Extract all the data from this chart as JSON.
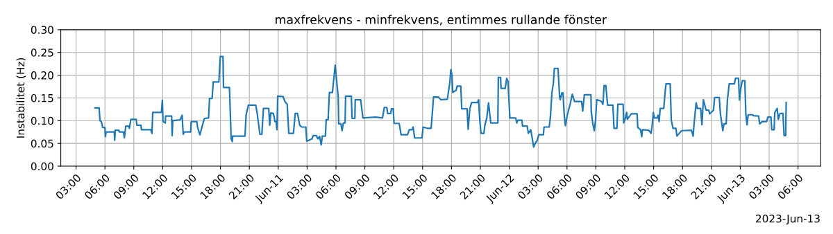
{
  "chart_data": {
    "type": "line",
    "title": "maxfrekvens - minfrekvens, entimmes rullande fönster",
    "ylabel": "Instabilitet (Hz)",
    "annotations": [
      "2023-Jun-13"
    ],
    "xlim": [
      "2023-06-10T01:25",
      "2023-06-13T08:20"
    ],
    "xticks": [
      {
        "value": "2023-06-10T03:00",
        "label": "03:00"
      },
      {
        "value": "2023-06-10T06:00",
        "label": "06:00"
      },
      {
        "value": "2023-06-10T09:00",
        "label": "09:00"
      },
      {
        "value": "2023-06-10T12:00",
        "label": "12:00"
      },
      {
        "value": "2023-06-10T15:00",
        "label": "15:00"
      },
      {
        "value": "2023-06-10T18:00",
        "label": "18:00"
      },
      {
        "value": "2023-06-10T21:00",
        "label": "21:00"
      },
      {
        "value": "2023-06-11T00:00",
        "label": "Jun-11"
      },
      {
        "value": "2023-06-11T03:00",
        "label": "03:00"
      },
      {
        "value": "2023-06-11T06:00",
        "label": "06:00"
      },
      {
        "value": "2023-06-11T09:00",
        "label": "09:00"
      },
      {
        "value": "2023-06-11T12:00",
        "label": "12:00"
      },
      {
        "value": "2023-06-11T15:00",
        "label": "15:00"
      },
      {
        "value": "2023-06-11T18:00",
        "label": "18:00"
      },
      {
        "value": "2023-06-11T21:00",
        "label": "21:00"
      },
      {
        "value": "2023-06-12T00:00",
        "label": "Jun-12"
      },
      {
        "value": "2023-06-12T03:00",
        "label": "03:00"
      },
      {
        "value": "2023-06-12T06:00",
        "label": "06:00"
      },
      {
        "value": "2023-06-12T09:00",
        "label": "09:00"
      },
      {
        "value": "2023-06-12T12:00",
        "label": "12:00"
      },
      {
        "value": "2023-06-12T15:00",
        "label": "15:00"
      },
      {
        "value": "2023-06-12T18:00",
        "label": "18:00"
      },
      {
        "value": "2023-06-12T21:00",
        "label": "21:00"
      },
      {
        "value": "2023-06-13T00:00",
        "label": "Jun-13"
      },
      {
        "value": "2023-06-13T03:00",
        "label": "03:00"
      },
      {
        "value": "2023-06-13T06:00",
        "label": "06:00"
      }
    ],
    "ylim": [
      0,
      0.3
    ],
    "yticks": [
      {
        "value": 0,
        "label": "0.00"
      },
      {
        "value": 0.05,
        "label": "0.05"
      },
      {
        "value": 0.1,
        "label": "0.10"
      },
      {
        "value": 0.15,
        "label": "0.15"
      },
      {
        "value": 0.2,
        "label": "0.20"
      },
      {
        "value": 0.25,
        "label": "0.25"
      },
      {
        "value": 0.3,
        "label": "0.30"
      }
    ],
    "grid": true,
    "series": [
      {
        "color": "#1f77b4",
        "x": [
          "2023-06-10T04:58",
          "2023-06-10T05:24",
          "2023-06-10T05:29",
          "2023-06-10T05:38",
          "2023-06-10T05:46",
          "2023-06-10T06:00",
          "2023-06-10T06:03",
          "2023-06-10T06:08",
          "2023-06-10T06:58",
          "2023-06-10T07:01",
          "2023-06-10T07:04",
          "2023-06-10T07:27",
          "2023-06-10T07:30",
          "2023-06-10T07:56",
          "2023-06-10T08:01",
          "2023-06-10T08:10",
          "2023-06-10T08:28",
          "2023-06-10T08:32",
          "2023-06-10T08:42",
          "2023-06-10T09:15",
          "2023-06-10T09:19",
          "2023-06-10T09:44",
          "2023-06-10T09:48",
          "2023-06-10T10:46",
          "2023-06-10T10:53",
          "2023-06-10T10:58",
          "2023-06-10T11:52",
          "2023-06-10T11:58",
          "2023-06-10T12:02",
          "2023-06-10T12:16",
          "2023-06-10T12:18",
          "2023-06-10T12:56",
          "2023-06-10T12:59",
          "2023-06-10T13:03",
          "2023-06-10T13:49",
          "2023-06-10T14:01",
          "2023-06-10T14:08",
          "2023-06-10T14:14",
          "2023-06-10T14:54",
          "2023-06-10T14:58",
          "2023-06-10T15:33",
          "2023-06-10T15:37",
          "2023-06-10T15:52",
          "2023-06-10T16:06",
          "2023-06-10T16:20",
          "2023-06-10T16:46",
          "2023-06-10T16:52",
          "2023-06-10T17:08",
          "2023-06-10T17:15",
          "2023-06-10T17:50",
          "2023-06-10T17:59",
          "2023-06-10T18:16",
          "2023-06-10T18:19",
          "2023-06-10T18:56",
          "2023-06-10T19:07",
          "2023-06-10T19:14",
          "2023-06-10T19:16",
          "2023-06-10T20:33",
          "2023-06-10T20:40",
          "2023-06-10T20:54",
          "2023-06-10T21:40",
          "2023-06-10T21:49",
          "2023-06-10T22:06",
          "2023-06-10T22:18",
          "2023-06-10T22:28",
          "2023-06-10T23:01",
          "2023-06-10T23:07",
          "2023-06-10T23:14",
          "2023-06-10T23:30",
          "2023-06-10T23:40",
          "2023-06-10T23:47",
          "2023-06-10T23:52",
          "2023-06-10T23:57",
          "2023-06-11T00:30",
          "2023-06-11T00:42",
          "2023-06-11T00:56",
          "2023-06-11T01:06",
          "2023-06-11T01:35",
          "2023-06-11T01:46",
          "2023-06-11T02:00",
          "2023-06-11T02:14",
          "2023-06-11T02:26",
          "2023-06-11T02:52",
          "2023-06-11T02:58",
          "2023-06-11T03:12",
          "2023-06-11T03:31",
          "2023-06-11T03:38",
          "2023-06-11T03:59",
          "2023-06-11T04:07",
          "2023-06-11T04:18",
          "2023-06-11T04:28",
          "2023-06-11T04:35",
          "2023-06-11T04:54",
          "2023-06-11T04:59",
          "2023-06-11T05:11",
          "2023-06-11T05:19",
          "2023-06-11T05:38",
          "2023-06-11T05:55",
          "2023-06-11T06:14",
          "2023-06-11T06:17",
          "2023-06-11T06:31",
          "2023-06-11T06:38",
          "2023-06-11T06:46",
          "2023-06-11T06:57",
          "2023-06-11T07:00",
          "2023-06-11T07:36",
          "2023-06-11T07:40",
          "2023-06-11T07:58",
          "2023-06-11T08:00",
          "2023-06-11T08:34",
          "2023-06-11T08:48",
          "2023-06-11T10:07",
          "2023-06-11T10:50",
          "2023-06-11T11:01",
          "2023-06-11T11:17",
          "2023-06-11T11:22",
          "2023-06-11T11:41",
          "2023-06-11T11:46",
          "2023-06-11T11:57",
          "2023-06-11T12:02",
          "2023-06-11T12:34",
          "2023-06-11T12:46",
          "2023-06-11T13:26",
          "2023-06-11T13:37",
          "2023-06-11T13:55",
          "2023-06-11T14:01",
          "2023-06-11T14:10",
          "2023-06-11T14:56",
          "2023-06-11T15:03",
          "2023-06-11T15:32",
          "2023-06-11T15:53",
          "2023-06-11T16:01",
          "2023-06-11T16:08",
          "2023-06-11T16:37",
          "2023-06-11T16:54",
          "2023-06-11T17:34",
          "2023-06-11T17:49",
          "2023-06-11T17:56",
          "2023-06-11T18:03",
          "2023-06-11T18:08",
          "2023-06-11T18:29",
          "2023-06-11T18:35",
          "2023-06-11T18:58",
          "2023-06-11T19:04",
          "2023-06-11T19:37",
          "2023-06-11T19:44",
          "2023-06-11T19:54",
          "2023-06-11T20:06",
          "2023-06-11T20:42",
          "2023-06-11T20:49",
          "2023-06-11T20:56",
          "2023-06-11T21:04",
          "2023-06-11T21:22",
          "2023-06-11T21:28",
          "2023-06-11T21:40",
          "2023-06-11T21:51",
          "2023-06-11T22:05",
          "2023-06-11T22:49",
          "2023-06-11T22:52",
          "2023-06-11T23:06",
          "2023-06-11T23:09",
          "2023-06-11T23:35",
          "2023-06-11T23:44",
          "2023-06-11T23:52",
          "2023-06-12T00:04",
          "2023-06-12T00:40",
          "2023-06-12T00:47",
          "2023-06-12T00:54",
          "2023-06-12T01:19",
          "2023-06-12T01:23",
          "2023-06-12T01:52",
          "2023-06-12T01:59",
          "2023-06-12T02:14",
          "2023-06-12T02:21",
          "2023-06-12T02:32",
          "2023-06-12T02:43",
          "2023-06-12T02:54",
          "2023-06-12T03:04",
          "2023-06-12T03:33",
          "2023-06-12T03:37",
          "2023-06-12T04:09",
          "2023-06-12T04:16",
          "2023-06-12T04:26",
          "2023-06-12T04:35",
          "2023-06-12T04:41",
          "2023-06-12T05:04",
          "2023-06-12T05:14",
          "2023-06-12T05:18",
          "2023-06-12T05:28",
          "2023-06-12T05:35",
          "2023-06-12T05:43",
          "2023-06-12T05:50",
          "2023-06-12T06:01",
          "2023-06-12T06:19",
          "2023-06-12T06:33",
          "2023-06-12T06:47",
          "2023-06-12T07:31",
          "2023-06-12T07:38",
          "2023-06-12T07:48",
          "2023-06-12T08:29",
          "2023-06-12T08:31",
          "2023-06-12T08:40",
          "2023-06-12T08:50",
          "2023-06-12T08:58",
          "2023-06-12T09:05",
          "2023-06-12T09:26",
          "2023-06-12T09:37",
          "2023-06-12T09:44",
          "2023-06-12T09:51",
          "2023-06-12T10:02",
          "2023-06-12T10:13",
          "2023-06-12T10:46",
          "2023-06-12T10:53",
          "2023-06-12T11:11",
          "2023-06-12T11:17",
          "2023-06-12T11:50",
          "2023-06-12T11:53",
          "2023-06-12T12:02",
          "2023-06-12T12:12",
          "2023-06-12T12:16",
          "2023-06-12T12:41",
          "2023-06-12T13:17",
          "2023-06-12T13:21",
          "2023-06-12T13:38",
          "2023-06-12T13:46",
          "2023-06-12T13:50",
          "2023-06-12T14:29",
          "2023-06-12T14:44",
          "2023-06-12T14:51",
          "2023-06-12T14:58",
          "2023-06-12T15:05",
          "2023-06-12T15:20",
          "2023-06-12T15:27",
          "2023-06-12T15:34",
          "2023-06-12T15:41",
          "2023-06-12T16:03",
          "2023-06-12T16:10",
          "2023-06-12T16:17",
          "2023-06-12T16:43",
          "2023-06-12T16:50",
          "2023-06-12T17:01",
          "2023-06-12T17:19",
          "2023-06-12T17:25",
          "2023-06-12T17:37",
          "2023-06-12T17:54",
          "2023-06-12T18:56",
          "2023-06-12T19:06",
          "2023-06-12T19:14",
          "2023-06-12T19:25",
          "2023-06-12T19:32",
          "2023-06-12T19:53",
          "2023-06-12T20:01",
          "2023-06-12T20:10",
          "2023-06-12T20:27",
          "2023-06-12T20:44",
          "2023-06-12T20:49",
          "2023-06-12T21:13",
          "2023-06-12T21:20",
          "2023-06-12T21:49",
          "2023-06-12T21:56",
          "2023-06-12T22:11",
          "2023-06-12T22:18",
          "2023-06-12T22:32",
          "2023-06-12T22:40",
          "2023-06-12T22:51",
          "2023-06-12T23:23",
          "2023-06-12T23:30",
          "2023-06-12T23:49",
          "2023-06-12T23:55",
          "2023-06-13T00:03",
          "2023-06-13T00:13",
          "2023-06-13T00:28",
          "2023-06-13T00:35",
          "2023-06-13T00:42",
          "2023-06-13T00:49",
          "2023-06-13T01:18",
          "2023-06-13T01:21",
          "2023-06-13T01:54",
          "2023-06-13T02:01",
          "2023-06-13T02:16",
          "2023-06-13T02:44",
          "2023-06-13T02:52",
          "2023-06-13T03:11",
          "2023-06-13T03:16",
          "2023-06-13T03:31",
          "2023-06-13T03:35",
          "2023-06-13T03:50",
          "2023-06-13T03:57",
          "2023-06-13T04:08",
          "2023-06-13T04:26",
          "2023-06-13T04:33",
          "2023-06-13T04:43",
          "2023-06-13T04:46"
        ],
        "values": [
          0.128,
          0.128,
          0.1,
          0.098,
          0.085,
          0.085,
          0.065,
          0.075,
          0.075,
          0.057,
          0.079,
          0.079,
          0.075,
          0.075,
          0.062,
          0.088,
          0.088,
          0.083,
          0.103,
          0.103,
          0.09,
          0.09,
          0.08,
          0.08,
          0.072,
          0.118,
          0.118,
          0.145,
          0.098,
          0.095,
          0.11,
          0.11,
          0.067,
          0.1,
          0.102,
          0.112,
          0.07,
          0.075,
          0.075,
          0.098,
          0.098,
          0.086,
          0.069,
          0.088,
          0.105,
          0.106,
          0.149,
          0.149,
          0.185,
          0.185,
          0.241,
          0.241,
          0.173,
          0.173,
          0.06,
          0.054,
          0.066,
          0.066,
          0.113,
          0.134,
          0.134,
          0.116,
          0.07,
          0.07,
          0.127,
          0.127,
          0.09,
          0.117,
          0.116,
          0.098,
          0.098,
          0.08,
          0.154,
          0.153,
          0.142,
          0.136,
          0.072,
          0.072,
          0.116,
          0.116,
          0.09,
          0.086,
          0.086,
          0.055,
          0.057,
          0.06,
          0.067,
          0.067,
          0.06,
          0.065,
          0.047,
          0.066,
          0.066,
          0.102,
          0.102,
          0.162,
          0.162,
          0.222,
          0.152,
          0.093,
          0.093,
          0.078,
          0.095,
          0.095,
          0.154,
          0.154,
          0.105,
          0.105,
          0.146,
          0.146,
          0.106,
          0.108,
          0.106,
          0.129,
          0.129,
          0.116,
          0.116,
          0.126,
          0.126,
          0.094,
          0.094,
          0.069,
          0.069,
          0.08,
          0.08,
          0.086,
          0.062,
          0.062,
          0.086,
          0.083,
          0.083,
          0.118,
          0.152,
          0.152,
          0.146,
          0.147,
          0.182,
          0.212,
          0.2,
          0.162,
          0.167,
          0.176,
          0.176,
          0.126,
          0.126,
          0.081,
          0.126,
          0.14,
          0.14,
          0.146,
          0.103,
          0.072,
          0.072,
          0.09,
          0.106,
          0.139,
          0.095,
          0.095,
          0.195,
          0.195,
          0.171,
          0.171,
          0.193,
          0.187,
          0.106,
          0.106,
          0.095,
          0.101,
          0.101,
          0.088,
          0.088,
          0.072,
          0.08,
          0.066,
          0.042,
          0.051,
          0.056,
          0.069,
          0.069,
          0.086,
          0.086,
          0.106,
          0.162,
          0.182,
          0.215,
          0.215,
          0.152,
          0.146,
          0.161,
          0.161,
          0.111,
          0.089,
          0.111,
          0.136,
          0.158,
          0.142,
          0.142,
          0.121,
          0.157,
          0.157,
          0.121,
          0.095,
          0.078,
          0.101,
          0.146,
          0.144,
          0.141,
          0.136,
          0.177,
          0.177,
          0.134,
          0.134,
          0.083,
          0.083,
          0.136,
          0.136,
          0.095,
          0.103,
          0.118,
          0.103,
          0.115,
          0.115,
          0.085,
          0.08,
          0.065,
          0.08,
          0.079,
          0.072,
          0.09,
          0.118,
          0.106,
          0.106,
          0.112,
          0.098,
          0.127,
          0.127,
          0.157,
          0.181,
          0.181,
          0.101,
          0.083,
          0.083,
          0.066,
          0.071,
          0.078,
          0.079,
          0.066,
          0.101,
          0.139,
          0.127,
          0.127,
          0.091,
          0.146,
          0.123,
          0.123,
          0.115,
          0.123,
          0.151,
          0.151,
          0.116,
          0.078,
          0.093,
          0.093,
          0.146,
          0.181,
          0.181,
          0.193,
          0.193,
          0.145,
          0.171,
          0.188,
          0.188,
          0.113,
          0.091,
          0.113,
          0.113,
          0.111,
          0.11,
          0.093,
          0.098,
          0.098,
          0.108,
          0.108,
          0.08,
          0.08,
          0.118,
          0.127,
          0.103,
          0.116,
          0.116,
          0.067,
          0.067,
          0.14
        ]
      }
    ]
  }
}
